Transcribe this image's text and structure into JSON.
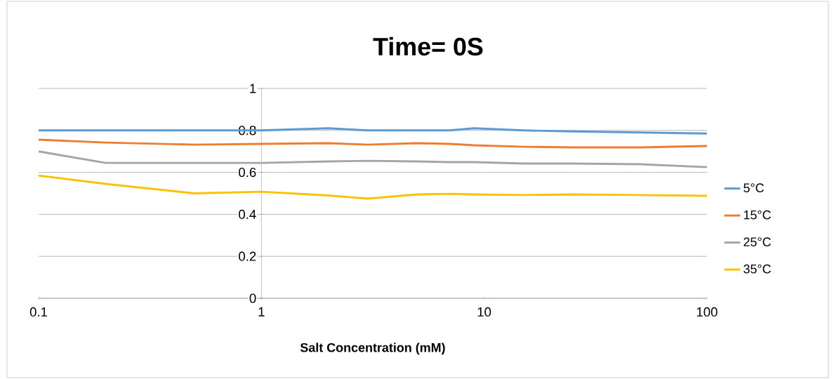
{
  "chart_data": {
    "type": "line",
    "title": "Time= 0S",
    "xlabel": "Salt Concentration (mM)",
    "x": [
      0.1,
      0.2,
      0.5,
      1,
      2,
      3,
      5,
      7,
      9,
      15,
      25,
      50,
      100
    ],
    "series": [
      {
        "name": "5°C",
        "color": "#5b9bd5",
        "values": [
          0.8,
          0.8,
          0.8,
          0.8,
          0.81,
          0.8,
          0.8,
          0.8,
          0.81,
          0.8,
          0.795,
          0.79,
          0.785
        ]
      },
      {
        "name": "15°C",
        "color": "#ed7d31",
        "values": [
          0.756,
          0.742,
          0.732,
          0.736,
          0.739,
          0.732,
          0.739,
          0.736,
          0.729,
          0.722,
          0.719,
          0.719,
          0.726
        ]
      },
      {
        "name": "25°C",
        "color": "#a5a5a5",
        "values": [
          0.7,
          0.645,
          0.645,
          0.645,
          0.652,
          0.655,
          0.652,
          0.649,
          0.649,
          0.642,
          0.642,
          0.639,
          0.625
        ]
      },
      {
        "name": "35°C",
        "color": "#ffc000",
        "values": [
          0.585,
          0.545,
          0.5,
          0.508,
          0.49,
          0.475,
          0.495,
          0.498,
          0.495,
          0.492,
          0.495,
          0.492,
          0.488
        ]
      }
    ],
    "xlim": [
      0.1,
      100
    ],
    "ylim": [
      0,
      1
    ],
    "xticks": [
      0.1,
      1,
      10,
      100
    ],
    "yticks": [
      0,
      0.2,
      0.4,
      0.6,
      0.8,
      1
    ],
    "log": "x",
    "grid": "y",
    "legend": "right"
  }
}
